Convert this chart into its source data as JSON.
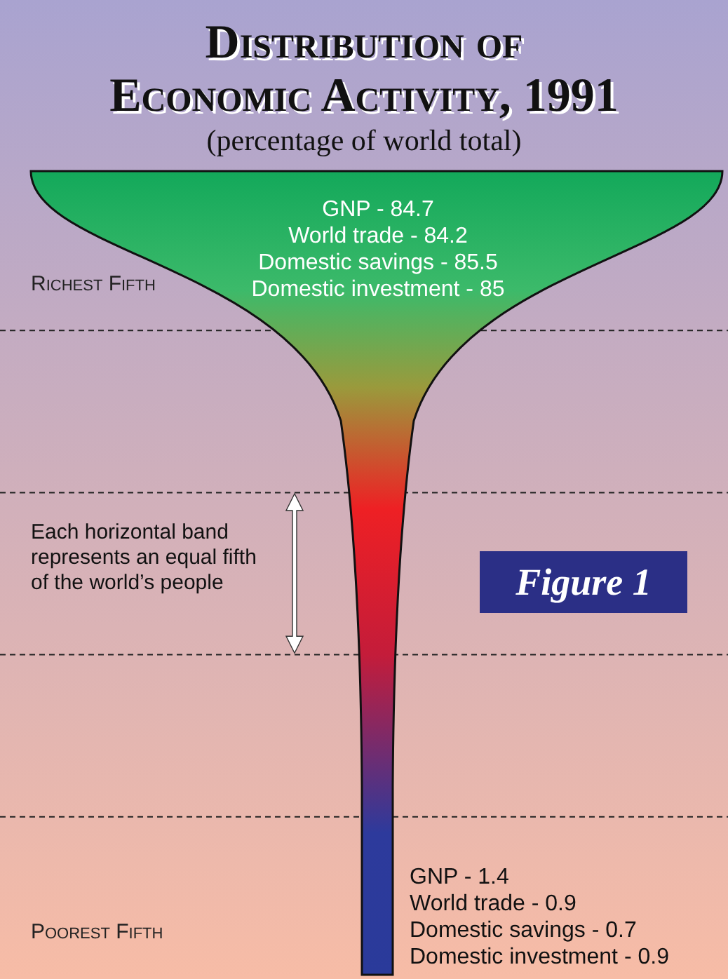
{
  "chart_data": {
    "type": "other",
    "title": "Distribution of Economic Activity, 1991",
    "subtitle": "(percentage of world total)",
    "categories": [
      "Richest Fifth",
      null,
      null,
      null,
      "Poorest Fifth"
    ],
    "series": [
      {
        "name": "GNP -",
        "values": [
          84.7,
          null,
          null,
          null,
          1.4
        ]
      },
      {
        "name": "World trade -",
        "values": [
          84.2,
          null,
          null,
          null,
          0.9
        ]
      },
      {
        "name": "Domestic savings -",
        "values": [
          85.5,
          null,
          null,
          null,
          0.7
        ]
      },
      {
        "name": "Domestic investment -",
        "values": [
          85,
          null,
          null,
          null,
          0.9
        ]
      }
    ],
    "data_labels": true,
    "annotations": [
      "Each horizontal band represents an equal fifth of the world’s people",
      "Figure 1"
    ]
  }
}
